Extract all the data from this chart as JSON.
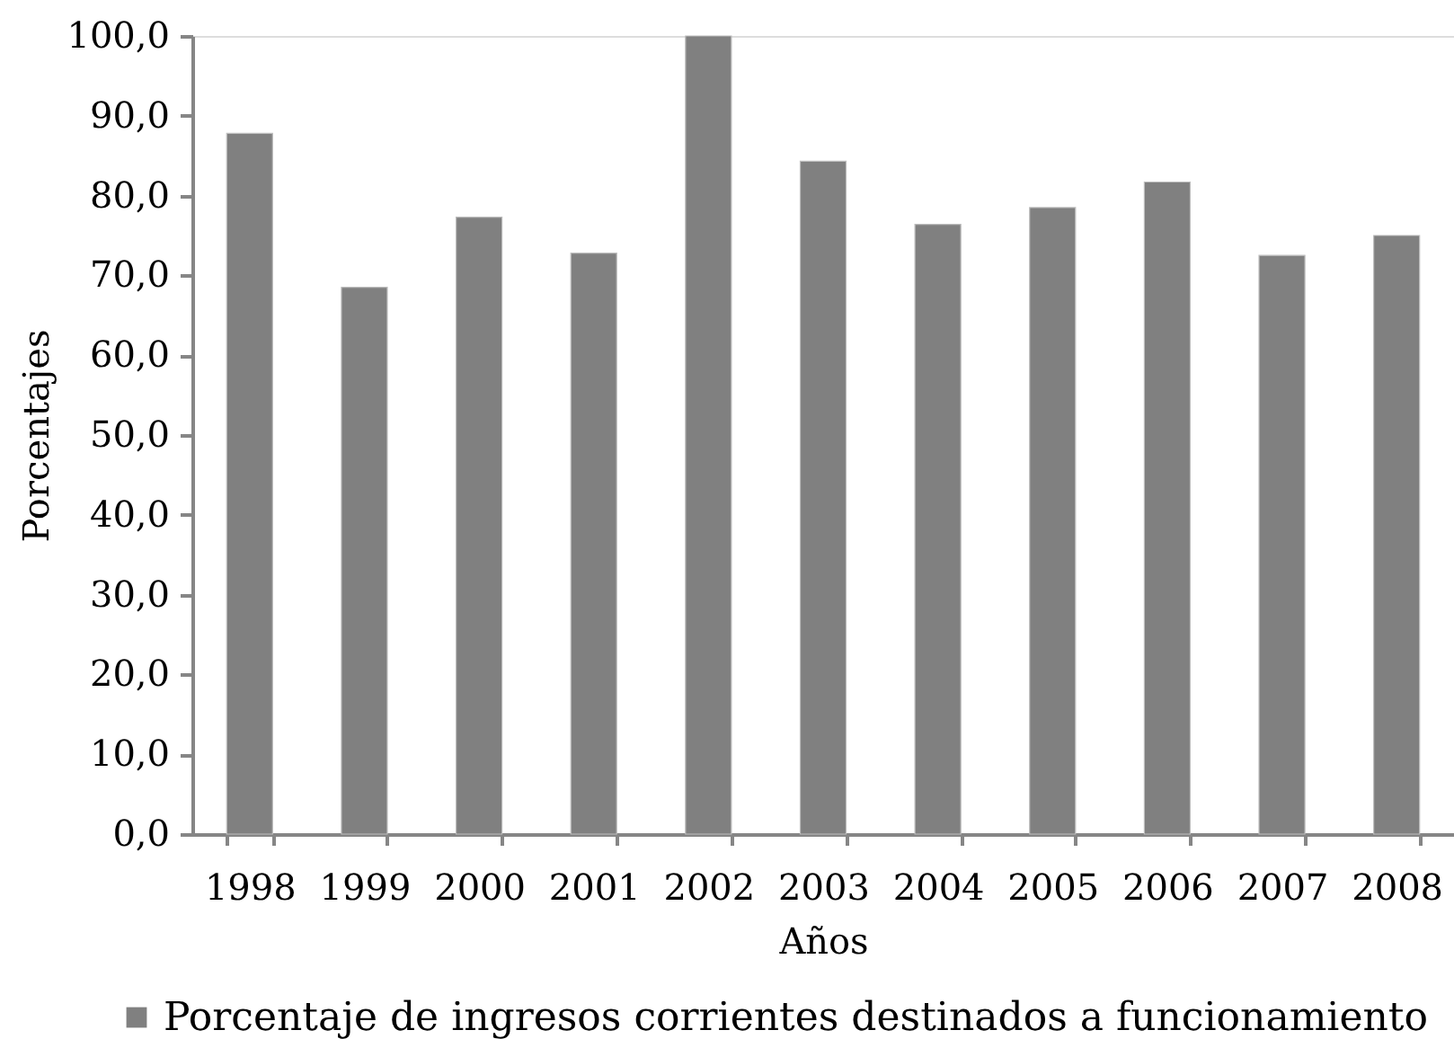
{
  "chart_data": {
    "type": "bar",
    "xlabel": "Años",
    "ylabel": "Porcentajes",
    "categories": [
      "1998",
      "1999",
      "2000",
      "2001",
      "2002",
      "2003",
      "2004",
      "2005",
      "2006",
      "2007",
      "2008"
    ],
    "series": [
      {
        "name": "Porcentaje de ingresos corrientes destinados a funcionamiento",
        "color": "#808080",
        "values": [
          87.8,
          68.5,
          77.3,
          72.8,
          100.0,
          84.3,
          76.4,
          78.5,
          81.7,
          72.5,
          75.0
        ]
      }
    ],
    "ylim": [
      0,
      100
    ],
    "yticks": [
      {
        "value": 0,
        "label": "0,0"
      },
      {
        "value": 10,
        "label": "10,0"
      },
      {
        "value": 20,
        "label": "20,0"
      },
      {
        "value": 30,
        "label": "30,0"
      },
      {
        "value": 40,
        "label": "40,0"
      },
      {
        "value": 50,
        "label": "50,0"
      },
      {
        "value": 60,
        "label": "60,0"
      },
      {
        "value": 70,
        "label": "70,0"
      },
      {
        "value": 80,
        "label": "80,0"
      },
      {
        "value": 90,
        "label": "90,0"
      },
      {
        "value": 100,
        "label": "100,0"
      }
    ],
    "grid": false,
    "legend": "bottom"
  }
}
